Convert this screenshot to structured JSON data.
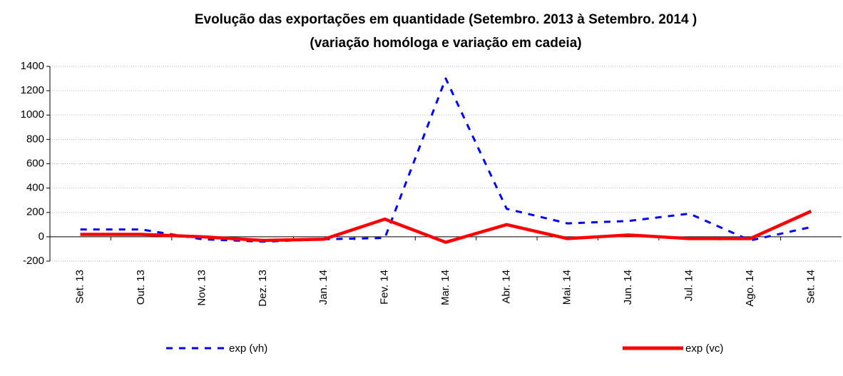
{
  "chart_data": {
    "type": "line",
    "title": "Evolução das exportações em quantidade (Setembro. 2013 à  Setembro. 2014 )",
    "subtitle": "(variação homóloga e variação em cadeia)",
    "categories": [
      "Set. 13",
      "Out. 13",
      "Nov. 13",
      "Dez. 13",
      "Jan. 14",
      "Fev. 14",
      "Mar. 14",
      "Abr. 14",
      "Mai. 14",
      "Jun. 14",
      "Jul. 14",
      "Ago. 14",
      "Set. 14"
    ],
    "series": [
      {
        "name": "exp (vh)",
        "color": "#0000ff",
        "dashed": true,
        "values": [
          60,
          60,
          -20,
          -40,
          -20,
          -10,
          1300,
          230,
          110,
          130,
          190,
          -30,
          80
        ]
      },
      {
        "name": "exp (vc)",
        "color": "#ff0000",
        "dashed": false,
        "values": [
          20,
          20,
          0,
          -30,
          -20,
          145,
          -45,
          100,
          -15,
          15,
          -15,
          -15,
          210
        ]
      }
    ],
    "ylim": [
      -200,
      1400
    ],
    "yticks": [
      -200,
      0,
      200,
      400,
      600,
      800,
      1000,
      1200,
      1400
    ],
    "grid": true
  }
}
